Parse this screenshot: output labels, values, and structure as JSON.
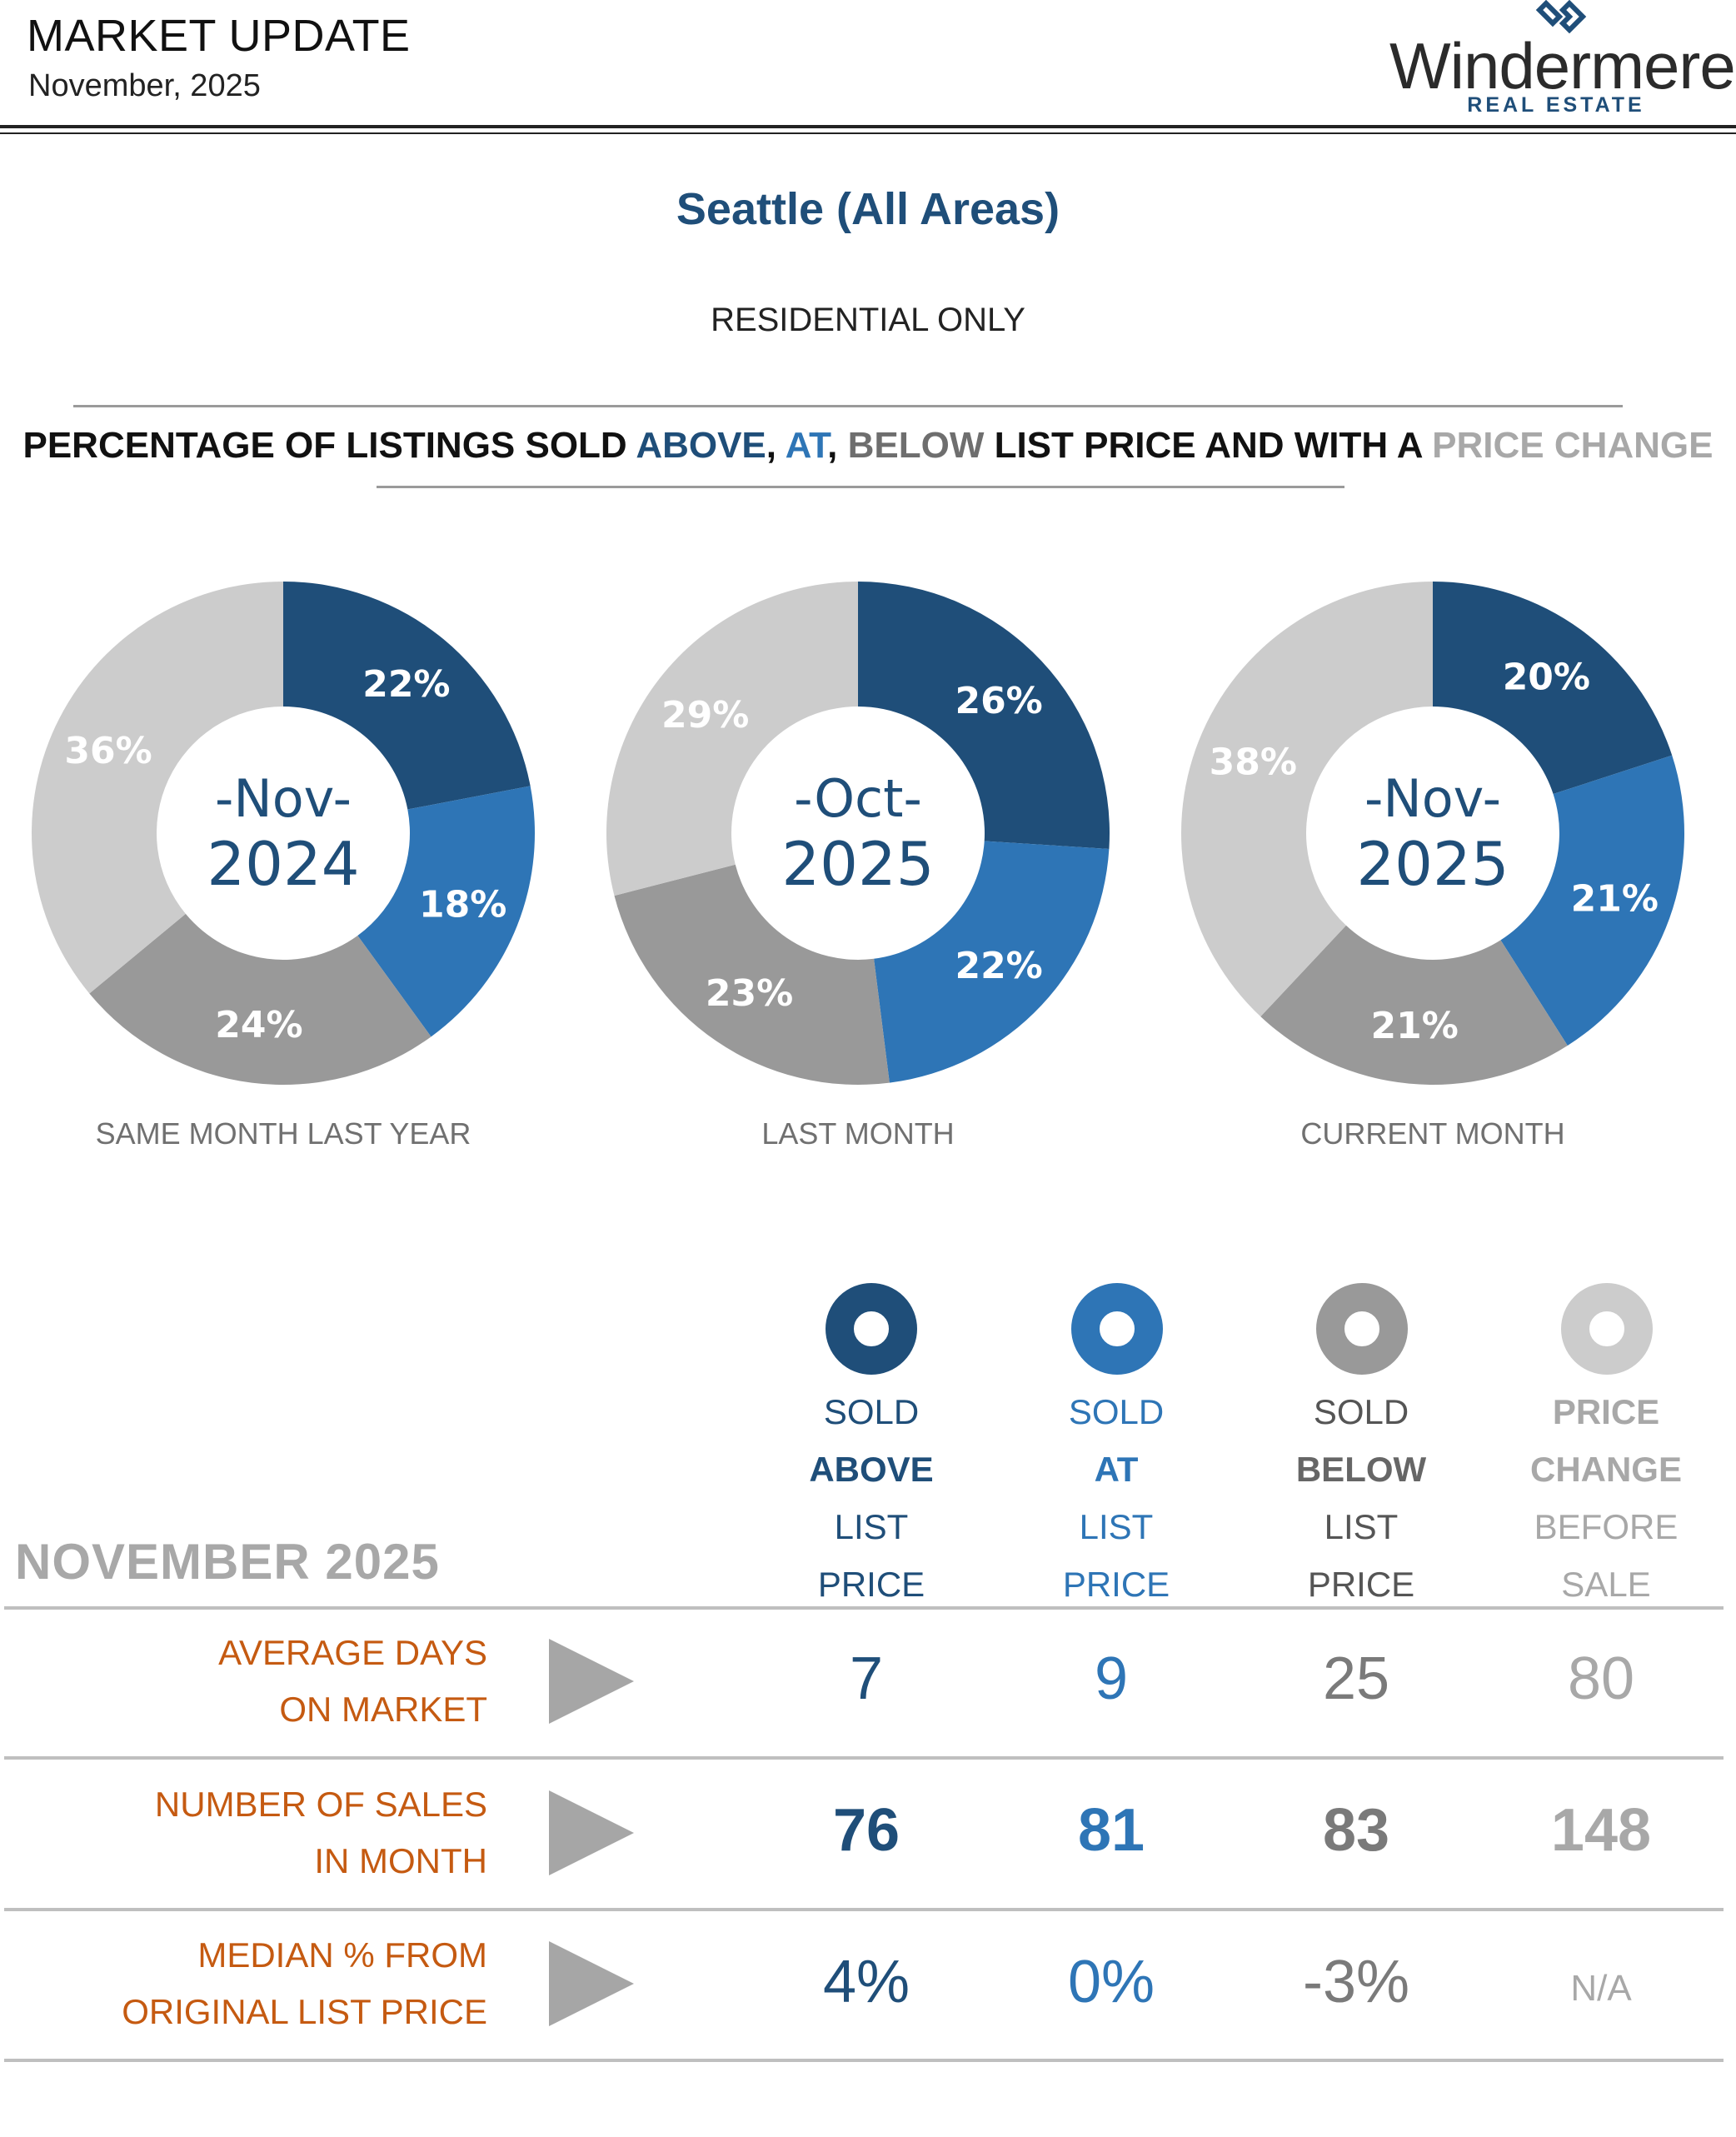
{
  "header": {
    "title": "MARKET UPDATE",
    "date": "November, 2025",
    "logo_name": "Windermere",
    "logo_sub": "REAL ESTATE"
  },
  "area_title": "Seattle (All Areas)",
  "subtitle": "RESIDENTIAL ONLY",
  "pct_heading": {
    "part1": "PERCENTAGE OF LISTINGS SOLD ",
    "above": "ABOVE",
    "sep1": ", ",
    "at": "AT",
    "sep2": ", ",
    "below": "BELOW",
    "part2": " LIST PRICE AND WITH A ",
    "price_change": "PRICE CHANGE"
  },
  "colors": {
    "above": "#1f4e79",
    "at": "#2e75b6",
    "below": "#999999",
    "price_change": "#cccccc"
  },
  "chart_data": [
    {
      "type": "pie",
      "center_month": "-Nov-",
      "center_year": "2024",
      "caption": "SAME MONTH LAST YEAR",
      "categories": [
        "Sold Above List Price",
        "Sold At List Price",
        "Sold Below List Price",
        "Price Change Before Sale"
      ],
      "values": [
        22,
        18,
        24,
        36
      ],
      "labels": [
        "22%",
        "18%",
        "24%",
        "36%"
      ]
    },
    {
      "type": "pie",
      "center_month": "-Oct-",
      "center_year": "2025",
      "caption": "LAST MONTH",
      "categories": [
        "Sold Above List Price",
        "Sold At List Price",
        "Sold Below List Price",
        "Price Change Before Sale"
      ],
      "values": [
        26,
        22,
        23,
        29
      ],
      "labels": [
        "26%",
        "22%",
        "23%",
        "29%"
      ]
    },
    {
      "type": "pie",
      "center_month": "-Nov-",
      "center_year": "2025",
      "caption": "CURRENT MONTH",
      "categories": [
        "Sold Above List Price",
        "Sold At List Price",
        "Sold Below List Price",
        "Price Change Before Sale"
      ],
      "values": [
        20,
        21,
        21,
        38
      ],
      "labels": [
        "20%",
        "21%",
        "21%",
        "38%"
      ]
    }
  ],
  "legend": [
    {
      "l1": "SOLD",
      "l2": "ABOVE",
      "l3": "LIST",
      "l4": "PRICE"
    },
    {
      "l1": "SOLD",
      "l2": "AT",
      "l3": "LIST",
      "l4": "PRICE"
    },
    {
      "l1": "SOLD",
      "l2": "BELOW",
      "l3": "LIST",
      "l4": "PRICE"
    },
    {
      "l1": "PRICE",
      "l2": "CHANGE",
      "l3": "BEFORE",
      "l4": "SALE"
    }
  ],
  "table": {
    "month_label": "NOVEMBER 2025",
    "rows": [
      {
        "label1": "AVERAGE DAYS",
        "label2": "ON MARKET",
        "values": [
          "7",
          "9",
          "25",
          "80"
        ]
      },
      {
        "label1": "NUMBER OF SALES",
        "label2": "IN MONTH",
        "values": [
          "76",
          "81",
          "83",
          "148"
        ]
      },
      {
        "label1": "MEDIAN % FROM",
        "label2": "ORIGINAL LIST PRICE",
        "values": [
          "4%",
          "0%",
          "-3%",
          "N/A"
        ]
      }
    ]
  }
}
